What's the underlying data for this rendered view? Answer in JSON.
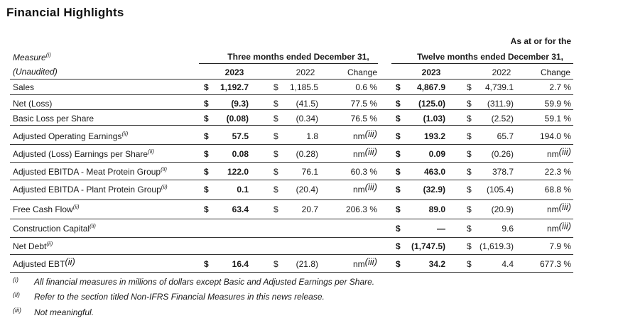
{
  "title": "Financial Highlights",
  "header": {
    "as_at_line": "As at or for the",
    "measure": "Measure",
    "measure_note": "(i)",
    "unaudited": "(Unaudited)",
    "three_months": "Three months ended December 31,",
    "twelve_months": "Twelve months ended December 31,",
    "col_2023": "2023",
    "col_2022": "2022",
    "col_change": "Change"
  },
  "rows": [
    {
      "label": "Sales",
      "note": "",
      "q23_cur": "$",
      "q23": "1,192.7",
      "q22_cur": "$",
      "q22": "1,185.5",
      "q_chg": "0.6 %",
      "q_chg_note": "",
      "y23_cur": "$",
      "y23": "4,867.9",
      "y22_cur": "$",
      "y22": "4,739.1",
      "y_chg": "2.7 %",
      "y_chg_note": ""
    },
    {
      "label": "Net (Loss)",
      "note": "",
      "q23_cur": "$",
      "q23": "(9.3)",
      "q22_cur": "$",
      "q22": "(41.5)",
      "q_chg": "77.5 %",
      "q_chg_note": "",
      "y23_cur": "$",
      "y23": "(125.0)",
      "y22_cur": "$",
      "y22": "(311.9)",
      "y_chg": "59.9 %",
      "y_chg_note": ""
    },
    {
      "label": "Basic Loss per Share",
      "note": "",
      "q23_cur": "$",
      "q23": "(0.08)",
      "q22_cur": "$",
      "q22": "(0.34)",
      "q_chg": "76.5 %",
      "q_chg_note": "",
      "y23_cur": "$",
      "y23": "(1.03)",
      "y22_cur": "$",
      "y22": "(2.52)",
      "y_chg": "59.1 %",
      "y_chg_note": ""
    },
    {
      "label": "Adjusted Operating Earnings",
      "note": "(ii)",
      "q23_cur": "$",
      "q23": "57.5",
      "q22_cur": "$",
      "q22": "1.8",
      "q_chg": "nm",
      "q_chg_note": "(iii)",
      "y23_cur": "$",
      "y23": "193.2",
      "y22_cur": "$",
      "y22": "65.7",
      "y_chg": "194.0 %",
      "y_chg_note": ""
    },
    {
      "label": "Adjusted (Loss) Earnings per Share",
      "note": "(ii)",
      "q23_cur": "$",
      "q23": "0.08",
      "q22_cur": "$",
      "q22": "(0.28)",
      "q_chg": "nm",
      "q_chg_note": "(iii)",
      "y23_cur": "$",
      "y23": "0.09",
      "y22_cur": "$",
      "y22": "(0.26)",
      "y_chg": "nm",
      "y_chg_note": "(iii)"
    },
    {
      "label": "Adjusted EBITDA - Meat Protein Group",
      "note": "(ii)",
      "q23_cur": "$",
      "q23": "122.0",
      "q22_cur": "$",
      "q22": "76.1",
      "q_chg": "60.3 %",
      "q_chg_note": "",
      "y23_cur": "$",
      "y23": "463.0",
      "y22_cur": "$",
      "y22": "378.7",
      "y_chg": "22.3 %",
      "y_chg_note": ""
    },
    {
      "label": "Adjusted EBITDA - Plant Protein Group",
      "note": "(ii)",
      "q23_cur": "$",
      "q23": "0.1",
      "q22_cur": "$",
      "q22": "(20.4)",
      "q_chg": "nm",
      "q_chg_note": "(iii)",
      "y23_cur": "$",
      "y23": "(32.9)",
      "y22_cur": "$",
      "y22": "(105.4)",
      "y_chg": "68.8 %",
      "y_chg_note": ""
    },
    {
      "label": "Free Cash Flow",
      "note": "(ii)",
      "q23_cur": "$",
      "q23": "63.4",
      "q22_cur": "$",
      "q22": "20.7",
      "q_chg": "206.3 %",
      "q_chg_note": "",
      "y23_cur": "$",
      "y23": "89.0",
      "y22_cur": "$",
      "y22": "(20.9)",
      "y_chg": "nm",
      "y_chg_note": "(iii)"
    },
    {
      "label": "Construction Capital",
      "note": "(ii)",
      "q23_cur": "",
      "q23": "",
      "q22_cur": "",
      "q22": "",
      "q_chg": "",
      "q_chg_note": "",
      "y23_cur": "$",
      "y23": "—",
      "y22_cur": "$",
      "y22": "9.6",
      "y_chg": "nm",
      "y_chg_note": "(iii)"
    },
    {
      "label": "Net Debt",
      "note": "(ii)",
      "q23_cur": "",
      "q23": "",
      "q22_cur": "",
      "q22": "",
      "q_chg": "",
      "q_chg_note": "",
      "y23_cur": "$",
      "y23": "(1,747.5)",
      "y22_cur": "$",
      "y22": "(1,619.3)",
      "y_chg": "7.9 %",
      "y_chg_note": ""
    },
    {
      "label": "Adjusted EBT",
      "note": "(ii)",
      "q23_cur": "$",
      "q23": "16.4",
      "q22_cur": "$",
      "q22": "(21.8)",
      "q_chg": "nm",
      "q_chg_note": "(iii)",
      "y23_cur": "$",
      "y23": "34.2",
      "y22_cur": "$",
      "y22": "4.4",
      "y_chg": "677.3 %",
      "y_chg_note": ""
    }
  ],
  "footnotes": [
    {
      "mark": "(i)",
      "text": "All financial measures in millions of dollars except Basic and Adjusted Earnings per Share."
    },
    {
      "mark": "(ii)",
      "text": "Refer to the section titled Non-IFRS Financial Measures in this news release."
    },
    {
      "mark": "(iii)",
      "text": "Not meaningful."
    }
  ]
}
